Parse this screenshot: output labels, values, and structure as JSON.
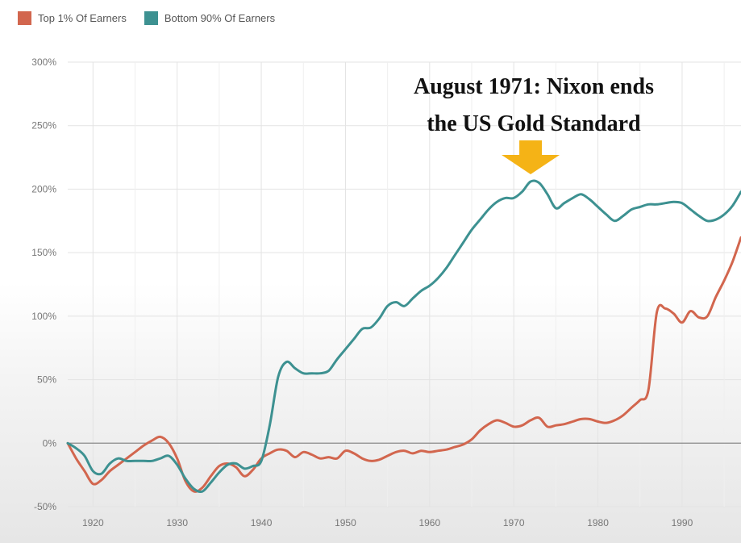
{
  "chart_data": {
    "type": "line",
    "legend_position": "top-left",
    "grid": true,
    "xlim": [
      1917,
      1997
    ],
    "ylim": [
      -50,
      300
    ],
    "x_ticks": [
      {
        "value": 1920,
        "label": "1920"
      },
      {
        "value": 1930,
        "label": "1930"
      },
      {
        "value": 1940,
        "label": "1940"
      },
      {
        "value": 1950,
        "label": "1950"
      },
      {
        "value": 1960,
        "label": "1960"
      },
      {
        "value": 1970,
        "label": "1970"
      },
      {
        "value": 1980,
        "label": "1980"
      },
      {
        "value": 1990,
        "label": "1990"
      }
    ],
    "y_ticks": [
      {
        "value": -50,
        "label": "-50%"
      },
      {
        "value": 0,
        "label": "0%"
      },
      {
        "value": 50,
        "label": "50%"
      },
      {
        "value": 100,
        "label": "100%"
      },
      {
        "value": 150,
        "label": "150%"
      },
      {
        "value": 200,
        "label": "200%"
      },
      {
        "value": 250,
        "label": "250%"
      },
      {
        "value": 300,
        "label": "300%"
      }
    ],
    "series": [
      {
        "name": "Top 1% Of Earners",
        "color": "#d2664e",
        "x": [
          1917,
          1918,
          1919,
          1920,
          1921,
          1922,
          1923,
          1924,
          1925,
          1926,
          1927,
          1928,
          1929,
          1930,
          1931,
          1932,
          1933,
          1934,
          1935,
          1936,
          1937,
          1938,
          1939,
          1940,
          1941,
          1942,
          1943,
          1944,
          1945,
          1946,
          1947,
          1948,
          1949,
          1950,
          1951,
          1952,
          1953,
          1954,
          1955,
          1956,
          1957,
          1958,
          1959,
          1960,
          1961,
          1962,
          1963,
          1964,
          1965,
          1966,
          1967,
          1968,
          1969,
          1970,
          1971,
          1972,
          1973,
          1974,
          1975,
          1976,
          1977,
          1978,
          1979,
          1980,
          1981,
          1982,
          1983,
          1984,
          1985,
          1986,
          1987,
          1988,
          1989,
          1990,
          1991,
          1992,
          1993,
          1994,
          1995,
          1996,
          1997
        ],
        "values": [
          0,
          -12,
          -22,
          -32,
          -29,
          -22,
          -17,
          -12,
          -7,
          -2,
          2,
          5,
          0,
          -12,
          -30,
          -38,
          -35,
          -26,
          -18,
          -16,
          -19,
          -26,
          -21,
          -12,
          -8,
          -5,
          -6,
          -11,
          -7,
          -9,
          -12,
          -11,
          -12,
          -6,
          -8,
          -12,
          -14,
          -13,
          -10,
          -7,
          -6,
          -8,
          -6,
          -7,
          -6,
          -5,
          -3,
          -1,
          3,
          10,
          15,
          18,
          16,
          13,
          14,
          18,
          20,
          13,
          14,
          15,
          17,
          19,
          19,
          17,
          16,
          18,
          22,
          28,
          34,
          42,
          103,
          106,
          102,
          95,
          104,
          99,
          100,
          115,
          128,
          143,
          162
        ]
      },
      {
        "name": "Bottom 90% Of Earners",
        "color": "#3d9191",
        "x": [
          1917,
          1918,
          1919,
          1920,
          1921,
          1922,
          1923,
          1924,
          1925,
          1926,
          1927,
          1928,
          1929,
          1930,
          1931,
          1932,
          1933,
          1934,
          1935,
          1936,
          1937,
          1938,
          1939,
          1940,
          1941,
          1942,
          1943,
          1944,
          1945,
          1946,
          1947,
          1948,
          1949,
          1950,
          1951,
          1952,
          1953,
          1954,
          1955,
          1956,
          1957,
          1958,
          1959,
          1960,
          1961,
          1962,
          1963,
          1964,
          1965,
          1966,
          1967,
          1968,
          1969,
          1970,
          1971,
          1972,
          1973,
          1974,
          1975,
          1976,
          1977,
          1978,
          1979,
          1980,
          1981,
          1982,
          1983,
          1984,
          1985,
          1986,
          1987,
          1988,
          1989,
          1990,
          1991,
          1992,
          1993,
          1994,
          1995,
          1996,
          1997
        ],
        "values": [
          0,
          -4,
          -10,
          -22,
          -24,
          -16,
          -12,
          -14,
          -14,
          -14,
          -14,
          -12,
          -10,
          -17,
          -28,
          -36,
          -38,
          -31,
          -23,
          -17,
          -16,
          -20,
          -18,
          -14,
          14,
          52,
          64,
          59,
          55,
          55,
          55,
          57,
          66,
          74,
          82,
          90,
          91,
          98,
          108,
          111,
          108,
          114,
          120,
          124,
          130,
          138,
          148,
          158,
          168,
          176,
          184,
          190,
          193,
          193,
          198,
          206,
          205,
          196,
          185,
          189,
          193,
          196,
          192,
          186,
          180,
          175,
          179,
          184,
          186,
          188,
          188,
          189,
          190,
          189,
          184,
          179,
          175,
          176,
          180,
          187,
          198
        ]
      }
    ],
    "baseline": 0,
    "annotation": {
      "line1": "August 1971: Nixon ends",
      "line2": "the US Gold Standard",
      "x": 1972,
      "arrow_color": "#f5b316"
    }
  },
  "legend": [
    {
      "label": "Top 1% Of Earners",
      "color": "#d2664e"
    },
    {
      "label": "Bottom 90% Of Earners",
      "color": "#3d9191"
    }
  ]
}
